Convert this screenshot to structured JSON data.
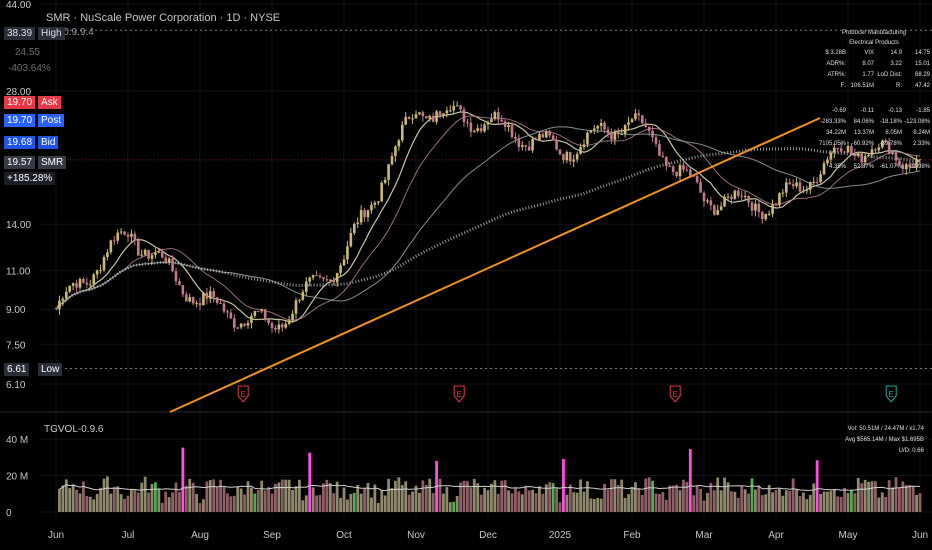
{
  "header": {
    "title": "SMR · NuScale Power Corporation · 1D · NYSE",
    "indicator": "TG-0.9.9.4",
    "volume_indicator": "TGVOL-0.9.6"
  },
  "quote": {
    "high_value": "38.39",
    "high_label": "High",
    "low_value": "6.61",
    "low_label": "Low",
    "ask_value": "19.70",
    "ask_label": "Ask",
    "post_value": "19.70",
    "post_label": "Post",
    "bid_value": "19.68",
    "bid_label": "Bid",
    "last_value": "19.57",
    "last_label": "SMR",
    "change": "+185.28%",
    "aux_value": "24.55",
    "aux_change": "-403.64%"
  },
  "stats_table": {
    "header1": "Producer Manufacturing",
    "header2": "Electrical Products",
    "rows": [
      [
        "$ 3.28B",
        "VIX",
        "14.9",
        "14.75"
      ],
      [
        "ADR%:",
        "8.07",
        "3.22",
        "15.01"
      ],
      [
        "ATR%:",
        "1.77",
        "LoD Dist:",
        "68.29"
      ],
      [
        "F:",
        "106.51M",
        "R:",
        "47.42"
      ],
      [
        "-0.69",
        "-0.11",
        "-0.13",
        "-1.85"
      ],
      [
        "-283.33%",
        "84.06%",
        "-18.18%",
        "-123.08%"
      ],
      [
        "34.22M",
        "13.37M",
        "8.05M",
        "8.24M"
      ],
      [
        "7105.05%",
        "-60.92%",
        "-39.78%",
        "2.33%"
      ],
      [
        "4.35%",
        "52.37%",
        "-61.07%",
        "-21.98%"
      ]
    ]
  },
  "volume_info": {
    "line1": "Vol: 50.51M / 24.47M / x1.74",
    "line2": "Avg $565.14M / Max $1.695B",
    "line3": "U/D: 0.66"
  },
  "earnings_marker": "E",
  "colors": {
    "up": "#c9b97a",
    "down": "#c17b8a",
    "trend": "#f0921e",
    "ma_fast": "#e8e8c0",
    "ma_slow": "#b08090",
    "ma_long": "#9aa8a8",
    "vol_up": "#8f8a6e",
    "vol_down": "#8e5f66",
    "vol_high": "#ff4fe0",
    "vol_green": "#4caf50"
  },
  "chart_data": {
    "type": "candlestick",
    "title": "SMR · NuScale Power Corporation · 1D · NYSE",
    "price_axis_ticks": [
      "44.00",
      "28.00",
      "14.00",
      "11.00",
      "9.00",
      "7.50",
      "6.10"
    ],
    "volume_axis_ticks": [
      "40 M",
      "20 M",
      "0"
    ],
    "x_tick_labels": [
      "Jun",
      "Jul",
      "Aug",
      "Sep",
      "Oct",
      "Nov",
      "Dec",
      "2025",
      "Feb",
      "Mar",
      "Apr",
      "May",
      "Jun"
    ],
    "y_scale": "log",
    "ylim": [
      6.1,
      44
    ],
    "volume_ylim": [
      0,
      45
    ],
    "monthly_closes": [
      [
        "Jun",
        9.0
      ],
      [
        "Jul",
        13.5
      ],
      [
        "Aug",
        9.4
      ],
      [
        "Sep",
        8.2
      ],
      [
        "Oct",
        11.8
      ],
      [
        "Nov",
        25.5
      ],
      [
        "Dec",
        24.0
      ],
      [
        "2025",
        20.5
      ],
      [
        "Feb",
        24.0
      ],
      [
        "Mar",
        16.0
      ],
      [
        "Apr",
        15.5
      ],
      [
        "May",
        21.0
      ],
      [
        "Jun",
        19.57
      ]
    ],
    "horizontal_levels": [
      38.39,
      6.61
    ],
    "earnings_months": [
      "Aug",
      "Nov",
      "Feb",
      "May"
    ]
  }
}
